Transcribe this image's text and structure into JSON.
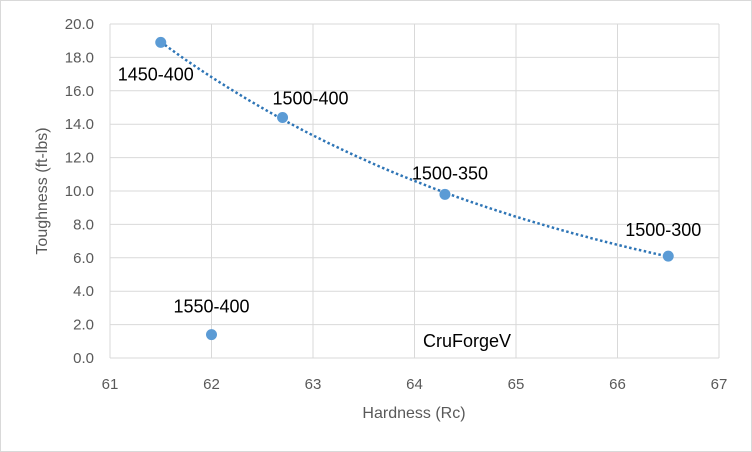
{
  "chart_data": {
    "type": "scatter",
    "xlabel": "Hardness (Rc)",
    "ylabel": "Toughness (ft-lbs)",
    "xlim": [
      61,
      67
    ],
    "ylim": [
      0,
      20
    ],
    "x_ticks": [
      "61",
      "62",
      "63",
      "64",
      "65",
      "66",
      "67"
    ],
    "y_ticks": [
      "0.0",
      "2.0",
      "4.0",
      "6.0",
      "8.0",
      "10.0",
      "12.0",
      "14.0",
      "16.0",
      "18.0",
      "20.0"
    ],
    "grid": true,
    "legend": "none",
    "trendline": "dotted",
    "annotation": "CruForgeV",
    "points": [
      {
        "label": "1450-400",
        "x": 61.5,
        "y": 18.9
      },
      {
        "label": "1500-400",
        "x": 62.7,
        "y": 14.4
      },
      {
        "label": "1500-350",
        "x": 64.3,
        "y": 9.8
      },
      {
        "label": "1500-300",
        "x": 66.5,
        "y": 6.1
      },
      {
        "label": "1550-400",
        "x": 62.0,
        "y": 1.4
      }
    ],
    "colors": {
      "marker": "#5b9bd5",
      "trendline": "#2e75b6",
      "grid": "#d9d9d9"
    }
  }
}
